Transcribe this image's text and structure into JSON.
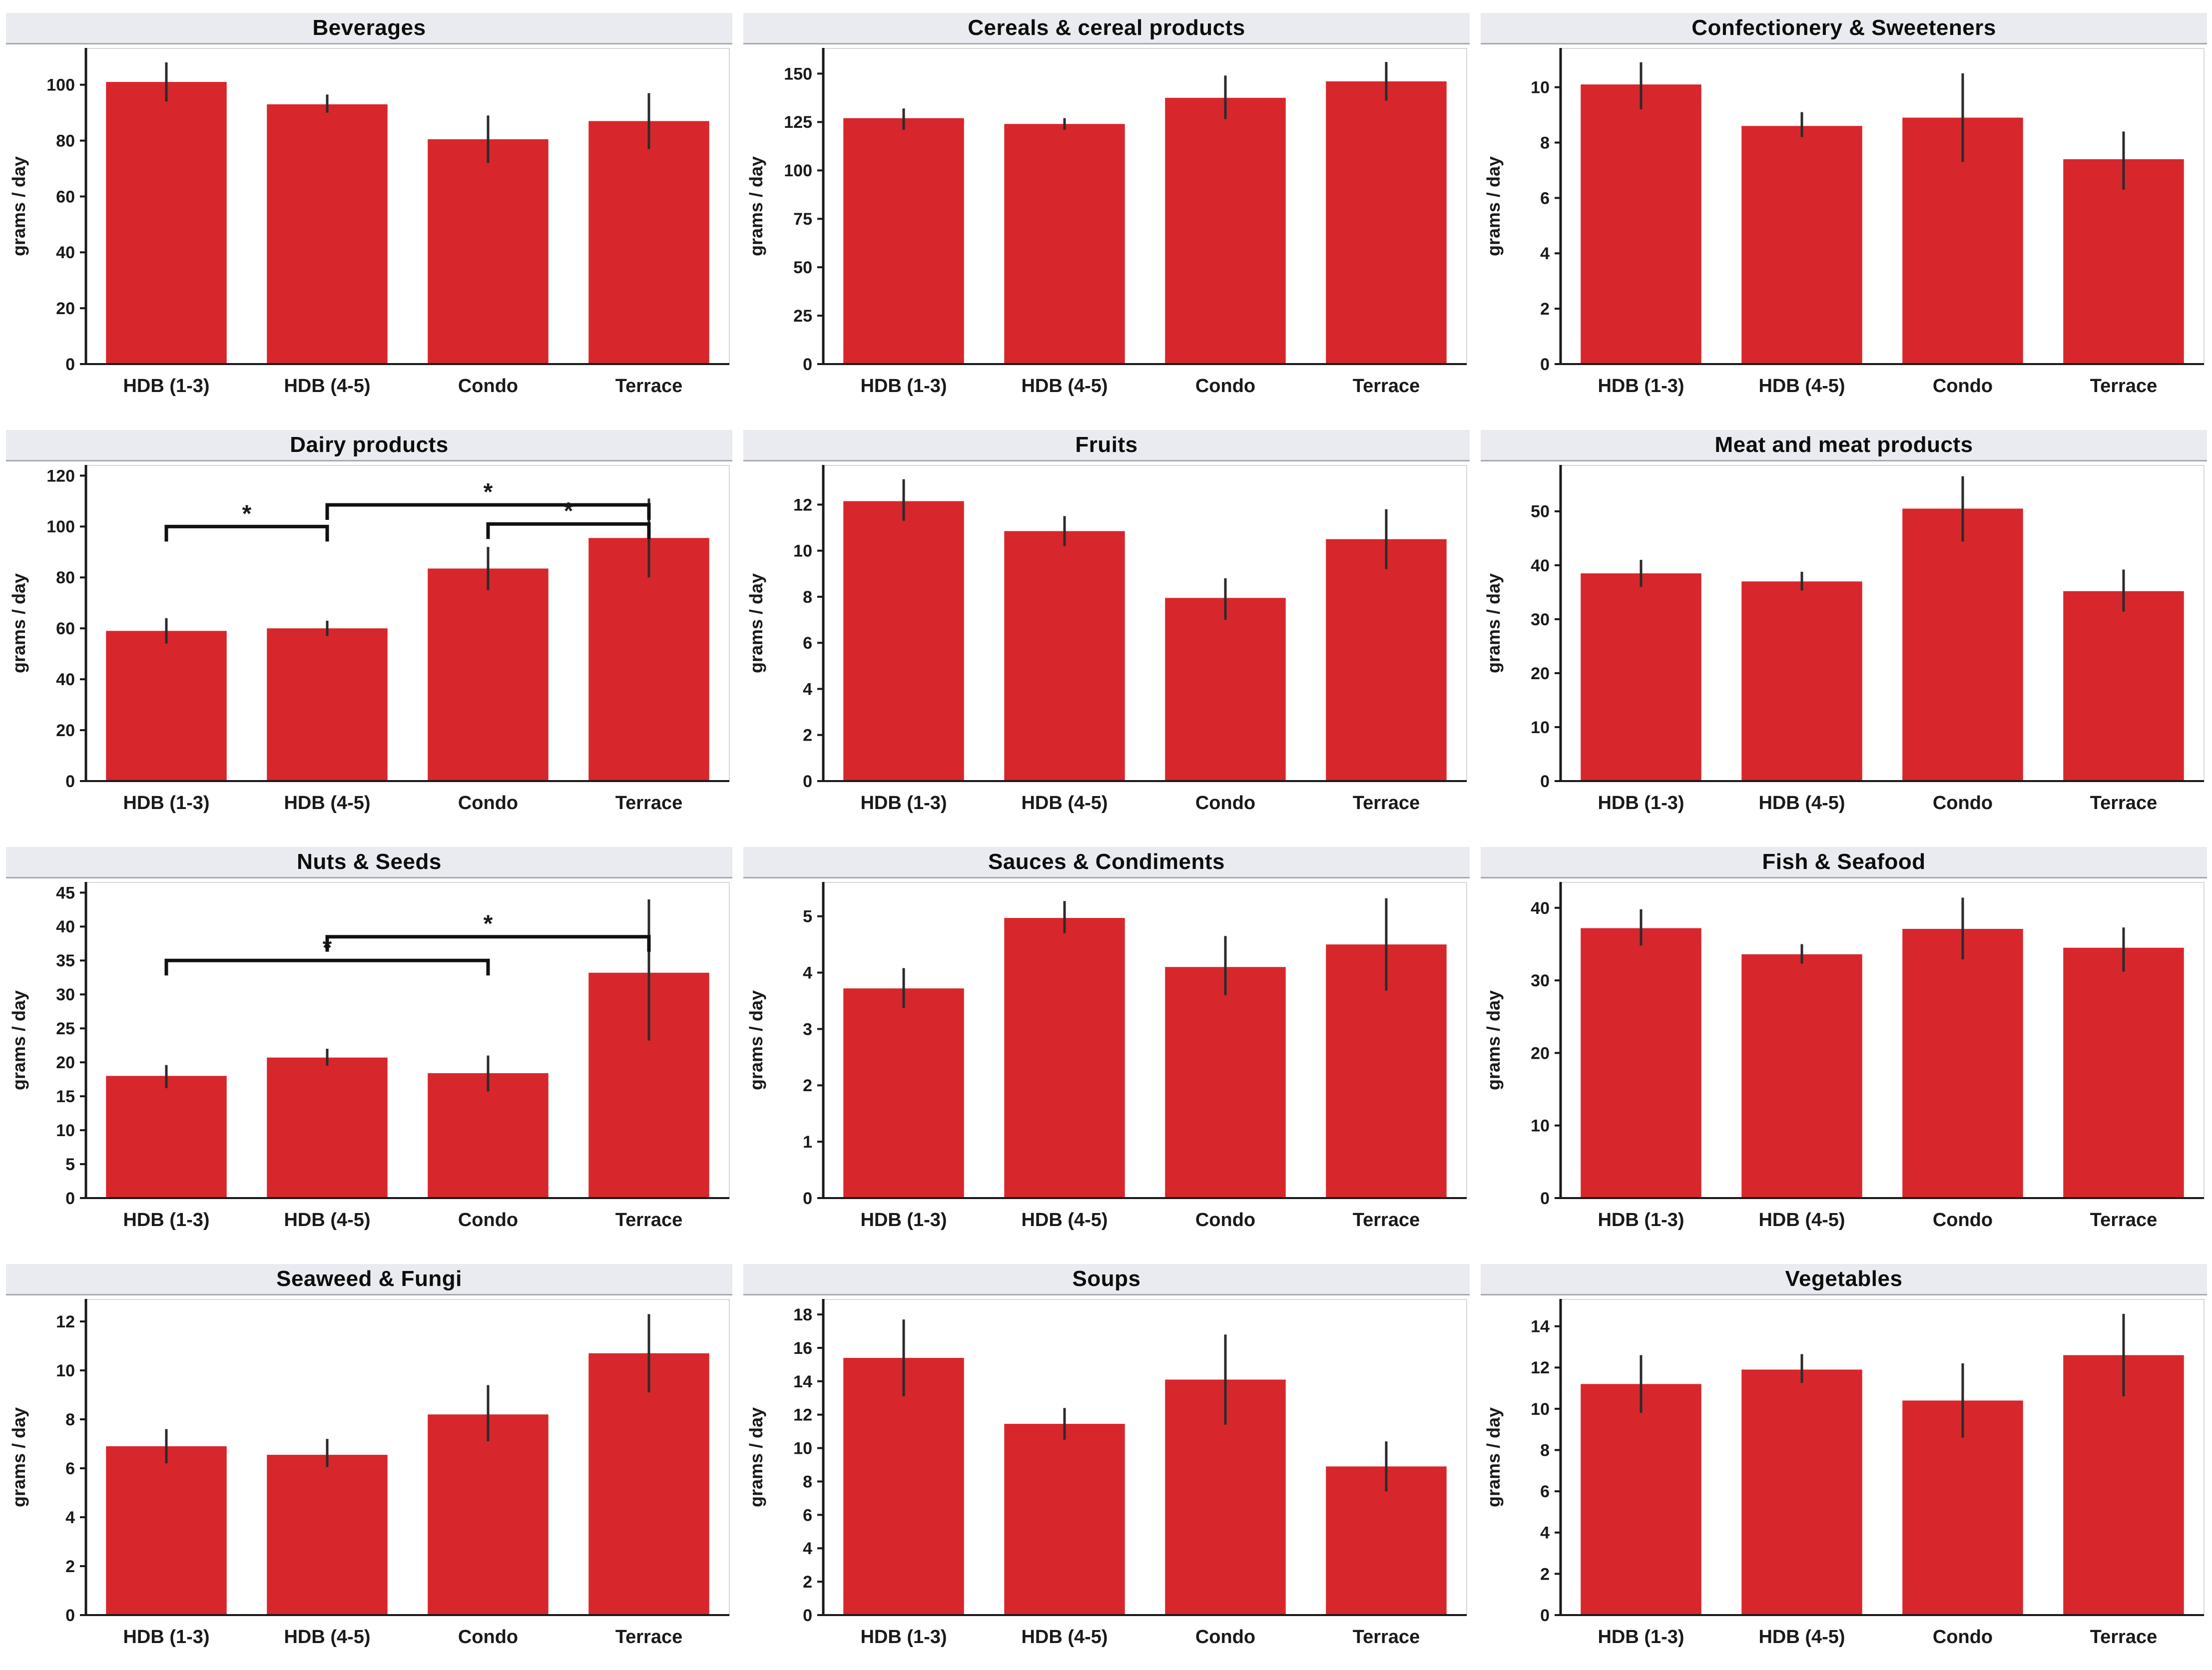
{
  "figure": {
    "ylabel": "grams / day",
    "categories": [
      "HDB (1-3)",
      "HDB (4-5)",
      "Condo",
      "Terrace"
    ]
  },
  "colors": {
    "bar": "#d7272c",
    "error_bar": "#2b2b2b",
    "axis": "#1a1a1a",
    "panel_header_bg": "#eaebf0",
    "panel_header_border": "#a9aab0",
    "plot_border": "#d6d7dd",
    "bracket": "#111111"
  },
  "chart_data": [
    {
      "type": "bar",
      "title": "Beverages",
      "xlabel": "",
      "ylabel": "grams / day",
      "categories": [
        "HDB (1-3)",
        "HDB (4-5)",
        "Condo",
        "Terrace"
      ],
      "values": [
        101,
        93,
        80.5,
        87
      ],
      "err_low": [
        94,
        90,
        72,
        77
      ],
      "err_high": [
        108,
        96.5,
        89,
        97
      ],
      "yticks": [
        0,
        20,
        40,
        60,
        80,
        100
      ],
      "ylim": [
        0,
        113
      ],
      "grid": false,
      "legend": "none"
    },
    {
      "type": "bar",
      "title": "Cereals & cereal products",
      "xlabel": "",
      "ylabel": "grams / day",
      "categories": [
        "HDB (1-3)",
        "HDB (4-5)",
        "Condo",
        "Terrace"
      ],
      "values": [
        127,
        124,
        137.5,
        146
      ],
      "err_low": [
        121,
        121,
        126.5,
        136
      ],
      "err_high": [
        132,
        127,
        149,
        156
      ],
      "yticks": [
        0,
        25,
        50,
        75,
        100,
        125,
        150
      ],
      "ylim": [
        0,
        163
      ],
      "grid": false,
      "legend": "none"
    },
    {
      "type": "bar",
      "title": "Confectionery & Sweeteners",
      "xlabel": "",
      "ylabel": "grams / day",
      "categories": [
        "HDB (1-3)",
        "HDB (4-5)",
        "Condo",
        "Terrace"
      ],
      "values": [
        10.1,
        8.6,
        8.9,
        7.4
      ],
      "err_low": [
        9.2,
        8.2,
        7.3,
        6.3
      ],
      "err_high": [
        10.9,
        9.1,
        10.5,
        8.4
      ],
      "yticks": [
        0,
        2,
        4,
        6,
        8,
        10
      ],
      "ylim": [
        0,
        11.4
      ],
      "grid": false,
      "legend": "none"
    },
    {
      "type": "bar",
      "title": "Dairy products",
      "xlabel": "",
      "ylabel": "grams / day",
      "categories": [
        "HDB (1-3)",
        "HDB (4-5)",
        "Condo",
        "Terrace"
      ],
      "values": [
        59,
        60,
        83.5,
        95.5
      ],
      "err_low": [
        54,
        57,
        75,
        80
      ],
      "err_high": [
        64,
        63,
        92,
        111
      ],
      "yticks": [
        0,
        20,
        40,
        60,
        80,
        100,
        120
      ],
      "ylim": [
        0,
        124
      ],
      "grid": false,
      "legend": "none",
      "brackets": [
        {
          "a": 0,
          "b": 1,
          "y": 100,
          "label": "*"
        },
        {
          "a": 1,
          "b": 3,
          "y": 108.5,
          "label": "*"
        },
        {
          "a": 2,
          "b": 3,
          "y": 101,
          "label": "*"
        }
      ]
    },
    {
      "type": "bar",
      "title": "Fruits",
      "xlabel": "",
      "ylabel": "grams / day",
      "categories": [
        "HDB (1-3)",
        "HDB (4-5)",
        "Condo",
        "Terrace"
      ],
      "values": [
        12.15,
        10.85,
        7.95,
        10.5
      ],
      "err_low": [
        11.3,
        10.2,
        7,
        9.2
      ],
      "err_high": [
        13.1,
        11.5,
        8.8,
        11.8
      ],
      "yticks": [
        0,
        2,
        4,
        6,
        8,
        10,
        12
      ],
      "ylim": [
        0,
        13.7
      ],
      "grid": false,
      "legend": "none"
    },
    {
      "type": "bar",
      "title": "Meat and meat products",
      "xlabel": "",
      "ylabel": "grams / day",
      "categories": [
        "HDB (1-3)",
        "HDB (4-5)",
        "Condo",
        "Terrace"
      ],
      "values": [
        38.5,
        37,
        50.5,
        35.2
      ],
      "err_low": [
        36,
        35.3,
        44.4,
        31.4
      ],
      "err_high": [
        41,
        38.8,
        56.5,
        39.2
      ],
      "yticks": [
        0,
        10,
        20,
        30,
        40,
        50
      ],
      "ylim": [
        0,
        58.5
      ],
      "grid": false,
      "legend": "none"
    },
    {
      "type": "bar",
      "title": "Nuts & Seeds",
      "xlabel": "",
      "ylabel": "grams / day",
      "categories": [
        "HDB (1-3)",
        "HDB (4-5)",
        "Condo",
        "Terrace"
      ],
      "values": [
        18,
        20.7,
        18.4,
        33.2
      ],
      "err_low": [
        16.2,
        19.5,
        15.7,
        23.2
      ],
      "err_high": [
        19.6,
        22,
        21,
        44
      ],
      "yticks": [
        0,
        5,
        10,
        15,
        20,
        25,
        30,
        35,
        40,
        45
      ],
      "ylim": [
        0,
        46.5
      ],
      "grid": false,
      "legend": "none",
      "brackets": [
        {
          "a": 0,
          "b": 2,
          "y": 35,
          "label": "*"
        },
        {
          "a": 1,
          "b": 3,
          "y": 38.5,
          "label": "*"
        }
      ]
    },
    {
      "type": "bar",
      "title": "Sauces & Condiments",
      "xlabel": "",
      "ylabel": "grams / day",
      "categories": [
        "HDB (1-3)",
        "HDB (4-5)",
        "Condo",
        "Terrace"
      ],
      "values": [
        3.72,
        4.97,
        4.1,
        4.5
      ],
      "err_low": [
        3.37,
        4.7,
        3.6,
        3.68
      ],
      "err_high": [
        4.08,
        5.27,
        4.65,
        5.32
      ],
      "yticks": [
        0,
        1,
        2,
        3,
        4,
        5
      ],
      "ylim": [
        0,
        5.6
      ],
      "grid": false,
      "legend": "none"
    },
    {
      "type": "bar",
      "title": "Fish & Seafood",
      "xlabel": "",
      "ylabel": "grams / day",
      "categories": [
        "HDB (1-3)",
        "HDB (4-5)",
        "Condo",
        "Terrace"
      ],
      "values": [
        37.2,
        33.6,
        37.1,
        34.5
      ],
      "err_low": [
        34.8,
        32.3,
        32.9,
        31.2
      ],
      "err_high": [
        39.8,
        35,
        41.4,
        37.3
      ],
      "yticks": [
        0,
        10,
        20,
        30,
        40
      ],
      "ylim": [
        0,
        43.5
      ],
      "grid": false,
      "legend": "none"
    },
    {
      "type": "bar",
      "title": "Seaweed & Fungi",
      "xlabel": "",
      "ylabel": "grams / day",
      "categories": [
        "HDB (1-3)",
        "HDB (4-5)",
        "Condo",
        "Terrace"
      ],
      "values": [
        6.9,
        6.55,
        8.2,
        10.7
      ],
      "err_low": [
        6.2,
        6.05,
        7.1,
        9.1
      ],
      "err_high": [
        7.6,
        7.2,
        9.4,
        12.3
      ],
      "yticks": [
        0,
        2,
        4,
        6,
        8,
        10,
        12
      ],
      "ylim": [
        0,
        12.9
      ],
      "grid": false,
      "legend": "none"
    },
    {
      "type": "bar",
      "title": "Soups",
      "xlabel": "",
      "ylabel": "grams / day",
      "categories": [
        "HDB (1-3)",
        "HDB (4-5)",
        "Condo",
        "Terrace"
      ],
      "values": [
        15.4,
        11.45,
        14.1,
        8.9
      ],
      "err_low": [
        13.1,
        10.5,
        11.4,
        7.4
      ],
      "err_high": [
        17.7,
        12.4,
        16.8,
        10.4
      ],
      "yticks": [
        0,
        2,
        4,
        6,
        8,
        10,
        12,
        14,
        16,
        18
      ],
      "ylim": [
        0,
        18.9
      ],
      "grid": false,
      "legend": "none"
    },
    {
      "type": "bar",
      "title": "Vegetables",
      "xlabel": "",
      "ylabel": "grams / day",
      "categories": [
        "HDB (1-3)",
        "HDB (4-5)",
        "Condo",
        "Terrace"
      ],
      "values": [
        11.2,
        11.9,
        10.4,
        12.6
      ],
      "err_low": [
        9.8,
        11.25,
        8.6,
        10.6
      ],
      "err_high": [
        12.6,
        12.65,
        12.2,
        14.6
      ],
      "yticks": [
        0,
        2,
        4,
        6,
        8,
        10,
        12,
        14
      ],
      "ylim": [
        0,
        15.3
      ],
      "grid": false,
      "legend": "none"
    }
  ]
}
